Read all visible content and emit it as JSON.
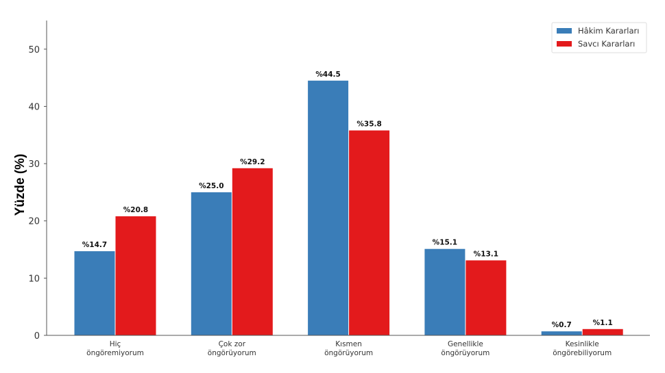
{
  "chart_data": {
    "type": "bar",
    "title": "",
    "xlabel": "",
    "ylabel": "Yüzde (%)",
    "ylim": [
      0,
      55
    ],
    "yticks": [
      0,
      10,
      20,
      30,
      40,
      50
    ],
    "grid": false,
    "legend_position": "top-right",
    "categories": [
      [
        "Hiç",
        "öngöremiyorum"
      ],
      [
        "Çok zor",
        "öngörüyorum"
      ],
      [
        "Kısmen",
        "öngörüyorum"
      ],
      [
        "Genellikle",
        "öngörüyorum"
      ],
      [
        "Kesinlikle",
        "öngörebiliyorum"
      ]
    ],
    "series": [
      {
        "name": "Hâkim Kararları",
        "color": "#3a7db8",
        "values": [
          14.7,
          25.0,
          44.5,
          15.1,
          0.7
        ],
        "labels": [
          "%14.7",
          "%25.0",
          "%44.5",
          "%15.1",
          "%0.7"
        ]
      },
      {
        "name": "Savcı Kararları",
        "color": "#e31a1c",
        "values": [
          20.8,
          29.2,
          35.8,
          13.1,
          1.1
        ],
        "labels": [
          "%20.8",
          "%29.2",
          "%35.8",
          "%13.1",
          "%1.1"
        ]
      }
    ]
  }
}
